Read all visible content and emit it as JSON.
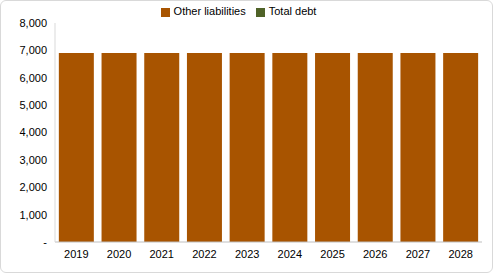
{
  "chart_data": {
    "type": "bar",
    "stacked": true,
    "legend": "top",
    "grid": false,
    "categories": [
      "2019",
      "2020",
      "2021",
      "2022",
      "2023",
      "2024",
      "2025",
      "2026",
      "2027",
      "2028"
    ],
    "series": [
      {
        "name": "Other liabilities",
        "color": "#a85400",
        "values": [
          6900,
          6900,
          6900,
          6900,
          6900,
          6900,
          6900,
          6900,
          6900,
          6900
        ]
      },
      {
        "name": "Total debt",
        "color": "#4f6228",
        "values": [
          0,
          0,
          0,
          0,
          0,
          0,
          0,
          0,
          0,
          0
        ]
      }
    ],
    "ylim": [
      0,
      8000
    ],
    "yticks": [
      {
        "value": 0,
        "label": "-"
      },
      {
        "value": 1000,
        "label": "1,000"
      },
      {
        "value": 2000,
        "label": "2,000"
      },
      {
        "value": 3000,
        "label": "3,000"
      },
      {
        "value": 4000,
        "label": "4,000"
      },
      {
        "value": 5000,
        "label": "5,000"
      },
      {
        "value": 6000,
        "label": "6,000"
      },
      {
        "value": 7000,
        "label": "7,000"
      },
      {
        "value": 8000,
        "label": "8,000"
      }
    ]
  }
}
